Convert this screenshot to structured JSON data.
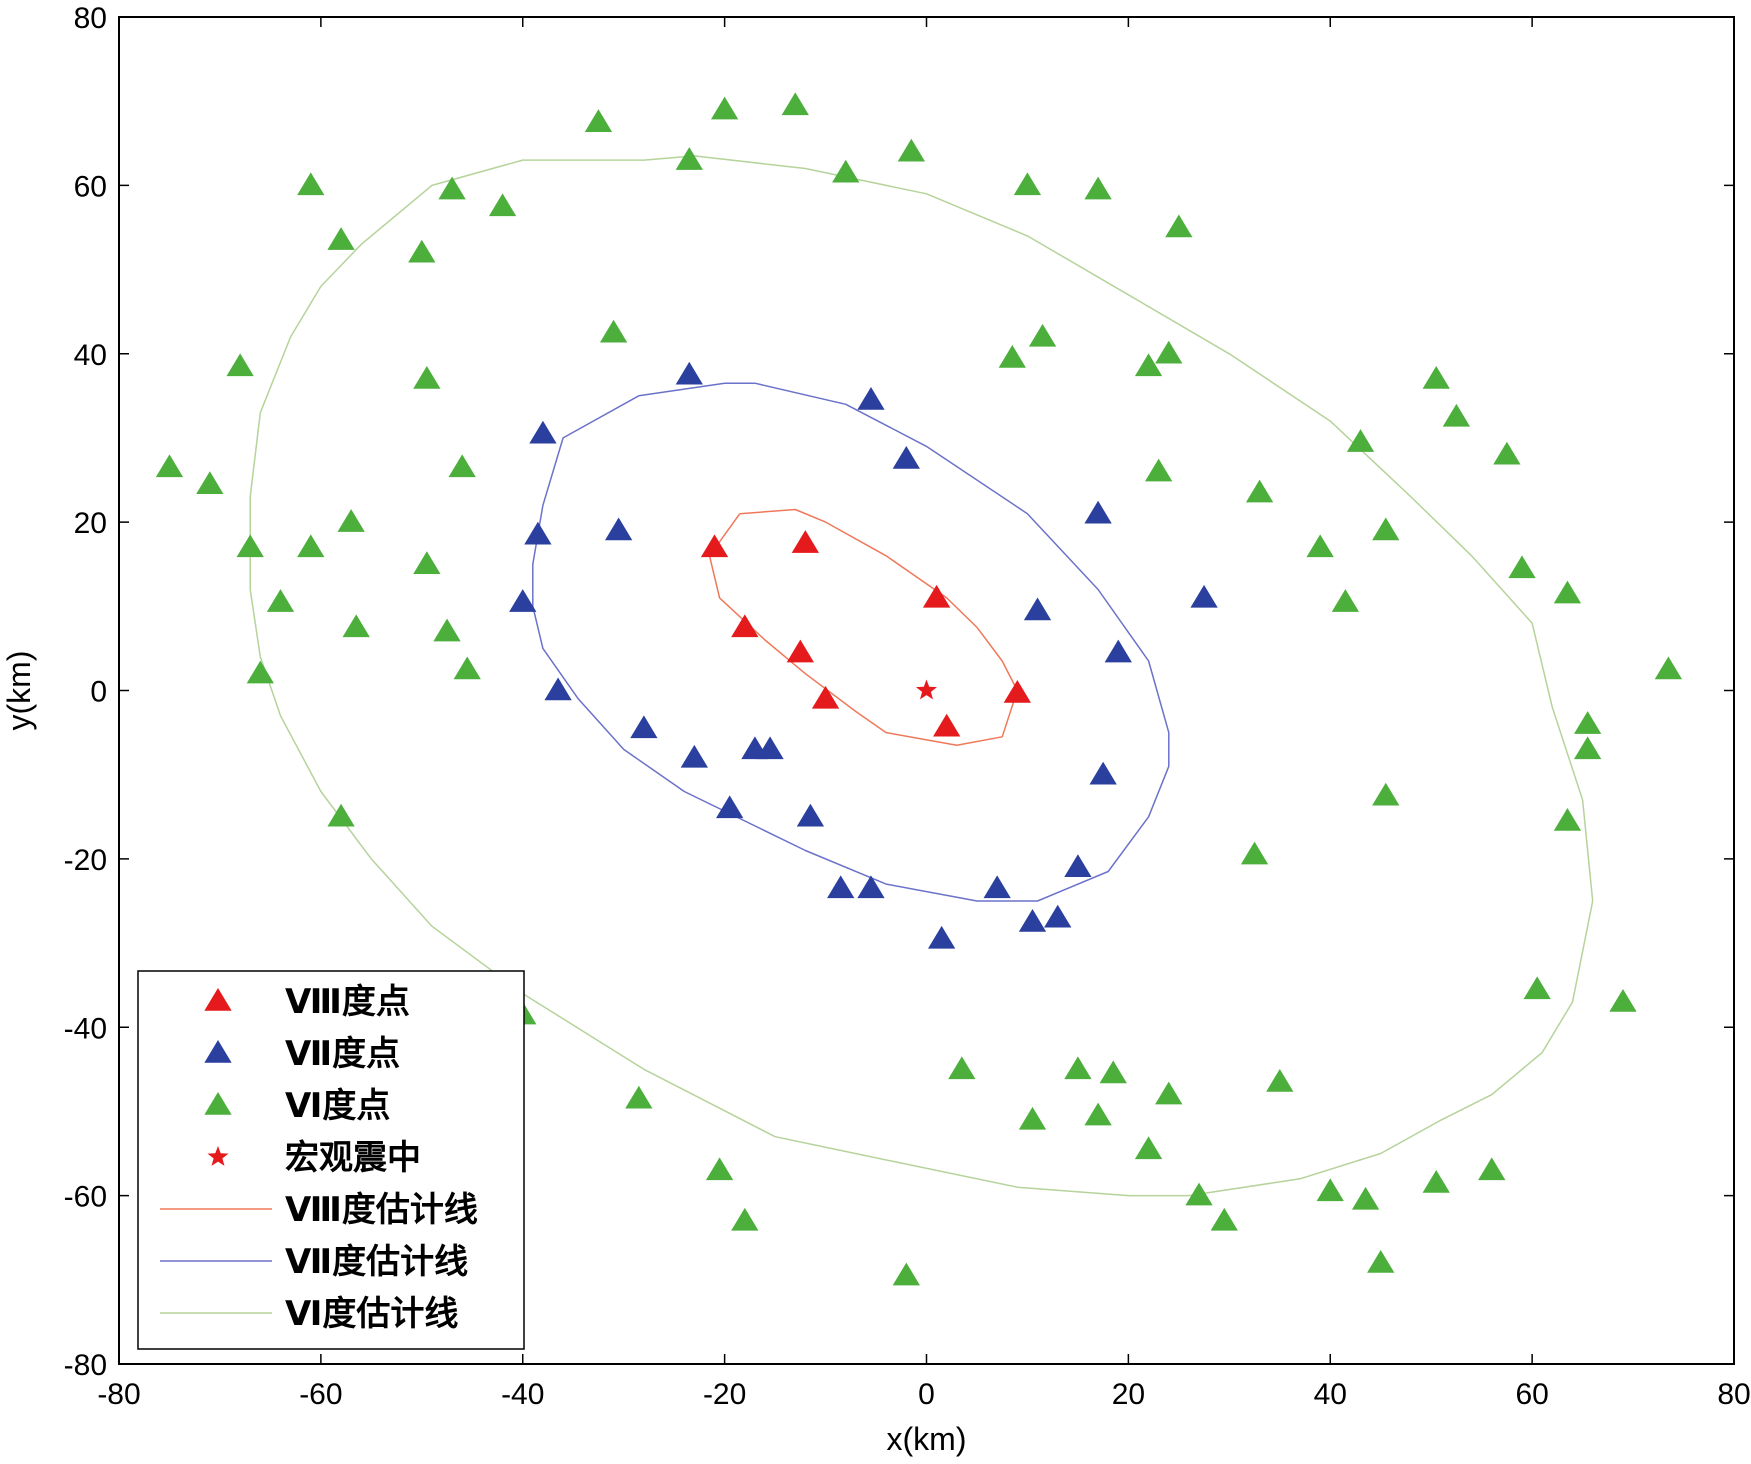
{
  "chart_data": {
    "type": "scatter",
    "xlabel": "x(km)",
    "ylabel": "y(km)",
    "xlim": [
      -80,
      80
    ],
    "ylim": [
      -80,
      80
    ],
    "xticks": [
      -80,
      -60,
      -40,
      -20,
      0,
      20,
      40,
      60,
      80
    ],
    "yticks": [
      -80,
      -60,
      -40,
      -20,
      0,
      20,
      40,
      60,
      80
    ],
    "grid": false,
    "legend_position": "bottom-left",
    "series": [
      {
        "name": "Ⅷ度点",
        "kind": "points",
        "marker": "triangle",
        "color": "#e41a1c",
        "points": [
          [
            -21,
            17
          ],
          [
            -12,
            17.5
          ],
          [
            1,
            11
          ],
          [
            -18,
            7.5
          ],
          [
            -12.5,
            4.5
          ],
          [
            -10,
            -1
          ],
          [
            9,
            -0.3
          ],
          [
            2,
            -4.3
          ]
        ]
      },
      {
        "name": "Ⅶ度点",
        "kind": "points",
        "marker": "triangle",
        "color": "#2a3f9e",
        "points": [
          [
            -23.5,
            37.5
          ],
          [
            -5.5,
            34.5
          ],
          [
            -38,
            30.5
          ],
          [
            -2,
            27.5
          ],
          [
            17,
            21
          ],
          [
            -30.5,
            19
          ],
          [
            -38.5,
            18.5
          ],
          [
            -40,
            10.5
          ],
          [
            27.5,
            11
          ],
          [
            11,
            9.5
          ],
          [
            19,
            4.5
          ],
          [
            -36.5,
            0
          ],
          [
            -28,
            -4.5
          ],
          [
            -23,
            -8
          ],
          [
            -17,
            -7
          ],
          [
            -15.5,
            -7
          ],
          [
            17.5,
            -10
          ],
          [
            -19.5,
            -14
          ],
          [
            -11.5,
            -15
          ],
          [
            15,
            -21
          ],
          [
            7,
            -23.5
          ],
          [
            -8.5,
            -23.5
          ],
          [
            -5.5,
            -23.5
          ],
          [
            10.5,
            -27.5
          ],
          [
            13,
            -27
          ],
          [
            1.5,
            -29.5
          ]
        ]
      },
      {
        "name": "Ⅵ度点",
        "kind": "points",
        "marker": "triangle",
        "color": "#4caf3c",
        "points": [
          [
            -13,
            69.5
          ],
          [
            -20,
            69
          ],
          [
            -32.5,
            67.5
          ],
          [
            -1.5,
            64
          ],
          [
            -23.5,
            63
          ],
          [
            -8,
            61.5
          ],
          [
            -61,
            60
          ],
          [
            -47,
            59.5
          ],
          [
            10,
            60
          ],
          [
            17,
            59.5
          ],
          [
            -42,
            57.5
          ],
          [
            -58,
            53.5
          ],
          [
            25,
            55
          ],
          [
            -50,
            52
          ],
          [
            -31,
            42.5
          ],
          [
            11.5,
            42
          ],
          [
            8.5,
            39.5
          ],
          [
            22,
            38.5
          ],
          [
            24,
            40
          ],
          [
            -68,
            38.5
          ],
          [
            -49.5,
            37
          ],
          [
            50.5,
            37
          ],
          [
            52.5,
            32.5
          ],
          [
            43,
            29.5
          ],
          [
            57.5,
            28
          ],
          [
            -75,
            26.5
          ],
          [
            -71,
            24.5
          ],
          [
            -46,
            26.5
          ],
          [
            23,
            26
          ],
          [
            33,
            23.5
          ],
          [
            -57,
            20
          ],
          [
            45.5,
            19
          ],
          [
            -67,
            17
          ],
          [
            -61,
            17
          ],
          [
            39,
            17
          ],
          [
            -49.5,
            15
          ],
          [
            59,
            14.5
          ],
          [
            63.5,
            11.5
          ],
          [
            41.5,
            10.5
          ],
          [
            -64,
            10.5
          ],
          [
            -56.5,
            7.5
          ],
          [
            -47.5,
            7
          ],
          [
            -45.5,
            2.5
          ],
          [
            -66,
            2
          ],
          [
            73.5,
            2.5
          ],
          [
            65.5,
            -4
          ],
          [
            65.5,
            -7
          ],
          [
            45.5,
            -12.5
          ],
          [
            -58,
            -15
          ],
          [
            63.5,
            -15.5
          ],
          [
            32.5,
            -19.5
          ],
          [
            60.5,
            -35.5
          ],
          [
            69,
            -37
          ],
          [
            -40,
            -38.5
          ],
          [
            3.5,
            -45
          ],
          [
            15,
            -45
          ],
          [
            18.5,
            -45.5
          ],
          [
            35,
            -46.5
          ],
          [
            24,
            -48
          ],
          [
            -28.5,
            -48.5
          ],
          [
            17,
            -50.5
          ],
          [
            10.5,
            -51
          ],
          [
            22,
            -54.5
          ],
          [
            -20.5,
            -57
          ],
          [
            56,
            -57
          ],
          [
            50.5,
            -58.5
          ],
          [
            40,
            -59.5
          ],
          [
            27,
            -60
          ],
          [
            43.5,
            -60.5
          ],
          [
            -18,
            -63
          ],
          [
            29.5,
            -63
          ],
          [
            45,
            -68
          ],
          [
            -2,
            -69.5
          ]
        ]
      },
      {
        "name": "宏观震中",
        "kind": "points",
        "marker": "star",
        "color": "#e41a1c",
        "points": [
          [
            0,
            0
          ]
        ]
      },
      {
        "name": "Ⅷ度估计线",
        "kind": "line",
        "color": "#f0785a",
        "points": [
          [
            -18.5,
            21
          ],
          [
            -13,
            21.5
          ],
          [
            -10,
            20
          ],
          [
            -4,
            16
          ],
          [
            2,
            11
          ],
          [
            5,
            7.5
          ],
          [
            7.5,
            3.5
          ],
          [
            9,
            0
          ],
          [
            7.5,
            -5.5
          ],
          [
            3,
            -6.5
          ],
          [
            -4,
            -5
          ],
          [
            -7,
            -2.5
          ],
          [
            -12,
            2
          ],
          [
            -16,
            6
          ],
          [
            -20.5,
            11
          ],
          [
            -21.5,
            16
          ],
          [
            -18.5,
            21
          ]
        ]
      },
      {
        "name": "Ⅶ度估计线",
        "kind": "line",
        "color": "#6b72c9",
        "points": [
          [
            -20,
            36.5
          ],
          [
            -17,
            36.5
          ],
          [
            -8,
            34
          ],
          [
            0,
            29
          ],
          [
            10,
            21
          ],
          [
            17,
            12
          ],
          [
            22,
            3.5
          ],
          [
            24,
            -5
          ],
          [
            24,
            -9
          ],
          [
            22,
            -15
          ],
          [
            18,
            -21.5
          ],
          [
            11,
            -25
          ],
          [
            5,
            -25
          ],
          [
            -4,
            -23
          ],
          [
            -12,
            -19
          ],
          [
            -24,
            -12
          ],
          [
            -30,
            -7
          ],
          [
            -34.5,
            -1
          ],
          [
            -38,
            5
          ],
          [
            -39,
            10
          ],
          [
            -39,
            15
          ],
          [
            -38,
            22
          ],
          [
            -36,
            30
          ],
          [
            -28.5,
            35
          ],
          [
            -20,
            36.5
          ]
        ]
      },
      {
        "name": "Ⅵ度估计线",
        "kind": "line",
        "color": "#b5d39a",
        "points": [
          [
            -28,
            63
          ],
          [
            -23,
            63.5
          ],
          [
            -12,
            62
          ],
          [
            0,
            59
          ],
          [
            10,
            54
          ],
          [
            20,
            47
          ],
          [
            30,
            40
          ],
          [
            40,
            32
          ],
          [
            48,
            23
          ],
          [
            54,
            16
          ],
          [
            60,
            8
          ],
          [
            62,
            -2
          ],
          [
            65,
            -13
          ],
          [
            66,
            -25
          ],
          [
            64,
            -37
          ],
          [
            61,
            -43
          ],
          [
            56,
            -48
          ],
          [
            51,
            -51
          ],
          [
            45,
            -55
          ],
          [
            37,
            -58
          ],
          [
            26,
            -60
          ],
          [
            20,
            -60
          ],
          [
            9,
            -59
          ],
          [
            -3,
            -56
          ],
          [
            -15,
            -53
          ],
          [
            -28,
            -45
          ],
          [
            -40,
            -36
          ],
          [
            -49,
            -28
          ],
          [
            -55,
            -20
          ],
          [
            -60,
            -12
          ],
          [
            -64,
            -3
          ],
          [
            -66,
            4
          ],
          [
            -67,
            12
          ],
          [
            -67,
            23
          ],
          [
            -66,
            33
          ],
          [
            -63,
            42
          ],
          [
            -60,
            48
          ],
          [
            -56,
            53
          ],
          [
            -49,
            60
          ],
          [
            -40,
            63
          ],
          [
            -28,
            63
          ]
        ]
      }
    ],
    "legend": [
      {
        "label": "Ⅷ度点",
        "symbol": "triangle",
        "color": "#e41a1c"
      },
      {
        "label": "Ⅶ度点",
        "symbol": "triangle",
        "color": "#2a3f9e"
      },
      {
        "label": "Ⅵ度点",
        "symbol": "triangle",
        "color": "#4caf3c"
      },
      {
        "label": "宏观震中",
        "symbol": "star",
        "color": "#e41a1c"
      },
      {
        "label": "Ⅷ度估计线",
        "symbol": "line",
        "color": "#f0785a"
      },
      {
        "label": "Ⅶ度估计线",
        "symbol": "line",
        "color": "#6b72c9"
      },
      {
        "label": "Ⅵ度估计线",
        "symbol": "line",
        "color": "#b5d39a"
      }
    ]
  }
}
